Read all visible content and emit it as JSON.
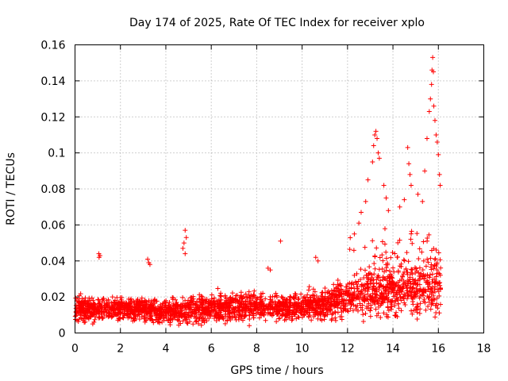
{
  "chart_data": {
    "type": "scatter",
    "title": "Day 174 of 2025, Rate Of TEC Index for receiver xplo",
    "xlabel": "GPS time / hours",
    "ylabel": "ROTI / TECUs",
    "xlim": [
      0,
      18
    ],
    "ylim": [
      0,
      0.16
    ],
    "xticks": [
      0,
      2,
      4,
      6,
      8,
      10,
      12,
      14,
      16,
      18
    ],
    "yticks": [
      0,
      0.02,
      0.04,
      0.06,
      0.08,
      0.1,
      0.12,
      0.14,
      0.16
    ],
    "xtick_labels": [
      "0",
      "2",
      "4",
      "6",
      "8",
      "10",
      "12",
      "14",
      "16",
      "18"
    ],
    "ytick_labels": [
      "0",
      "0.02",
      "0.04",
      "0.06",
      "0.08",
      "0.1",
      "0.12",
      "0.14",
      "0.16"
    ],
    "grid": true,
    "marker": "+",
    "color": "#ff0000",
    "series": [
      {
        "name": "ROTI",
        "description_note": "dense point cloud; x in hours, y in TECU/min",
        "x_range": [
          0,
          16.1
        ],
        "baseline_profile": [
          [
            0,
            0.013,
            0.006
          ],
          [
            1,
            0.013,
            0.005
          ],
          [
            2,
            0.013,
            0.005
          ],
          [
            3,
            0.013,
            0.005
          ],
          [
            4,
            0.012,
            0.005
          ],
          [
            5,
            0.013,
            0.006
          ],
          [
            6,
            0.014,
            0.006
          ],
          [
            7,
            0.015,
            0.006
          ],
          [
            8,
            0.015,
            0.006
          ],
          [
            9,
            0.014,
            0.005
          ],
          [
            10,
            0.015,
            0.006
          ],
          [
            11,
            0.016,
            0.007
          ],
          [
            12,
            0.02,
            0.009
          ],
          [
            13,
            0.022,
            0.01
          ],
          [
            14,
            0.022,
            0.011
          ],
          [
            15,
            0.024,
            0.012
          ],
          [
            16,
            0.025,
            0.013
          ]
        ],
        "notable_points": [
          [
            1.05,
            0.044
          ],
          [
            1.06,
            0.042
          ],
          [
            1.1,
            0.043
          ],
          [
            3.2,
            0.041
          ],
          [
            3.25,
            0.039
          ],
          [
            3.3,
            0.038
          ],
          [
            4.75,
            0.047
          ],
          [
            4.8,
            0.05
          ],
          [
            4.85,
            0.057
          ],
          [
            4.9,
            0.053
          ],
          [
            4.85,
            0.044
          ],
          [
            8.5,
            0.036
          ],
          [
            8.6,
            0.035
          ],
          [
            9.05,
            0.051
          ],
          [
            10.6,
            0.042
          ],
          [
            10.7,
            0.04
          ],
          [
            12.3,
            0.055
          ],
          [
            12.5,
            0.061
          ],
          [
            12.6,
            0.067
          ],
          [
            12.8,
            0.073
          ],
          [
            12.9,
            0.085
          ],
          [
            13.1,
            0.095
          ],
          [
            13.15,
            0.104
          ],
          [
            13.2,
            0.11
          ],
          [
            13.25,
            0.112
          ],
          [
            13.3,
            0.108
          ],
          [
            13.35,
            0.1
          ],
          [
            13.4,
            0.097
          ],
          [
            13.6,
            0.082
          ],
          [
            13.7,
            0.075
          ],
          [
            13.8,
            0.068
          ],
          [
            14.3,
            0.07
          ],
          [
            14.5,
            0.074
          ],
          [
            14.65,
            0.103
          ],
          [
            14.7,
            0.094
          ],
          [
            14.75,
            0.088
          ],
          [
            14.8,
            0.082
          ],
          [
            15.1,
            0.077
          ],
          [
            15.3,
            0.073
          ],
          [
            15.4,
            0.09
          ],
          [
            15.5,
            0.108
          ],
          [
            15.6,
            0.123
          ],
          [
            15.65,
            0.13
          ],
          [
            15.7,
            0.138
          ],
          [
            15.72,
            0.146
          ],
          [
            15.75,
            0.153
          ],
          [
            15.78,
            0.145
          ],
          [
            15.8,
            0.126
          ],
          [
            15.85,
            0.118
          ],
          [
            15.9,
            0.11
          ],
          [
            15.95,
            0.106
          ],
          [
            16.0,
            0.099
          ],
          [
            16.05,
            0.088
          ],
          [
            16.08,
            0.082
          ]
        ]
      }
    ]
  }
}
